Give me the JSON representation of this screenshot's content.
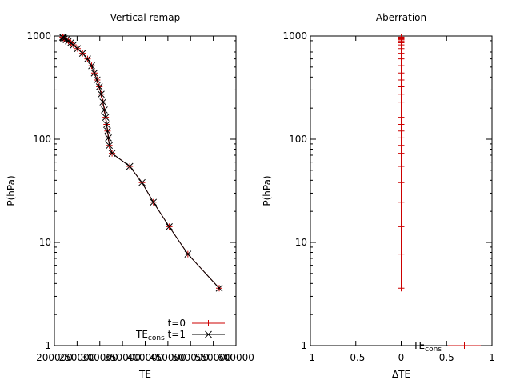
{
  "chart_data": [
    {
      "type": "line",
      "title": "Vertical remap",
      "xlabel": "TE",
      "ylabel": "P(hPa)",
      "xlim": [
        200000,
        600000
      ],
      "ylim": [
        1,
        1000
      ],
      "yscale": "log",
      "x_ticks": [
        "200000",
        "250000",
        "300000",
        "350000",
        "400000",
        "450000",
        "500000",
        "550000",
        "600000"
      ],
      "y_ticks": [
        "1",
        "10",
        "100",
        "1000"
      ],
      "legend": "bottom-right",
      "series": [
        {
          "name": "t=0",
          "color": "#cc0000",
          "marker": "plus",
          "x": [
            563000,
            494000,
            453000,
            418000,
            393000,
            366000,
            327000,
            321000,
            319000,
            317000,
            315000,
            313000,
            310000,
            307000,
            303000,
            299000,
            294000,
            288000,
            282000,
            273000,
            262000,
            251000,
            242000,
            236000,
            231000,
            226000,
            222000,
            220000,
            219000,
            218000
          ],
          "y": [
            3.6,
            7.7,
            14.2,
            24.5,
            38,
            54.5,
            73,
            87,
            103,
            120,
            139,
            163,
            192,
            229,
            273,
            322,
            375,
            438,
            515,
            600,
            680,
            755,
            820,
            860,
            895,
            920,
            940,
            955,
            965,
            975
          ]
        },
        {
          "name": "TEcons t=1",
          "name_main": "TE",
          "name_sub": "cons",
          "name_suffix": " t=1",
          "color": "#000000",
          "marker": "cross",
          "x": [
            563000,
            494000,
            453000,
            418000,
            393000,
            366000,
            327000,
            321000,
            319000,
            317000,
            315000,
            313000,
            310000,
            307000,
            303000,
            299000,
            294000,
            288000,
            282000,
            273000,
            262000,
            251000,
            242000,
            236000,
            231000,
            226000,
            222000,
            220000,
            219000,
            218000
          ],
          "y": [
            3.6,
            7.7,
            14.2,
            24.5,
            38,
            54.5,
            73,
            87,
            103,
            120,
            139,
            163,
            192,
            229,
            273,
            322,
            375,
            438,
            515,
            600,
            680,
            755,
            820,
            860,
            895,
            920,
            940,
            955,
            965,
            975
          ]
        }
      ]
    },
    {
      "type": "line",
      "title": "Aberration",
      "xlabel": "ΔTE",
      "ylabel": "P(hPa)",
      "xlim": [
        -1,
        1
      ],
      "ylim": [
        1,
        1000
      ],
      "yscale": "log",
      "x_ticks": [
        "-1",
        "-0.5",
        "0",
        "0.5",
        "1"
      ],
      "y_ticks": [
        "1",
        "10",
        "100",
        "1000"
      ],
      "legend": "bottom-right",
      "series": [
        {
          "name": "TEcons",
          "name_main": "TE",
          "name_sub": "cons",
          "name_suffix": "",
          "color": "#cc0000",
          "marker": "plus",
          "x": [
            0,
            0,
            0,
            0,
            0,
            0,
            0,
            0,
            0,
            0,
            0,
            0,
            0,
            0,
            0,
            0,
            0,
            0,
            0,
            0,
            0,
            0,
            0,
            0,
            0,
            0,
            0,
            0,
            0,
            0
          ],
          "y": [
            3.6,
            7.7,
            14.2,
            24.5,
            38,
            54.5,
            73,
            87,
            103,
            120,
            139,
            163,
            192,
            229,
            273,
            322,
            375,
            438,
            515,
            600,
            680,
            755,
            820,
            860,
            895,
            920,
            940,
            955,
            965,
            975
          ]
        }
      ]
    }
  ]
}
